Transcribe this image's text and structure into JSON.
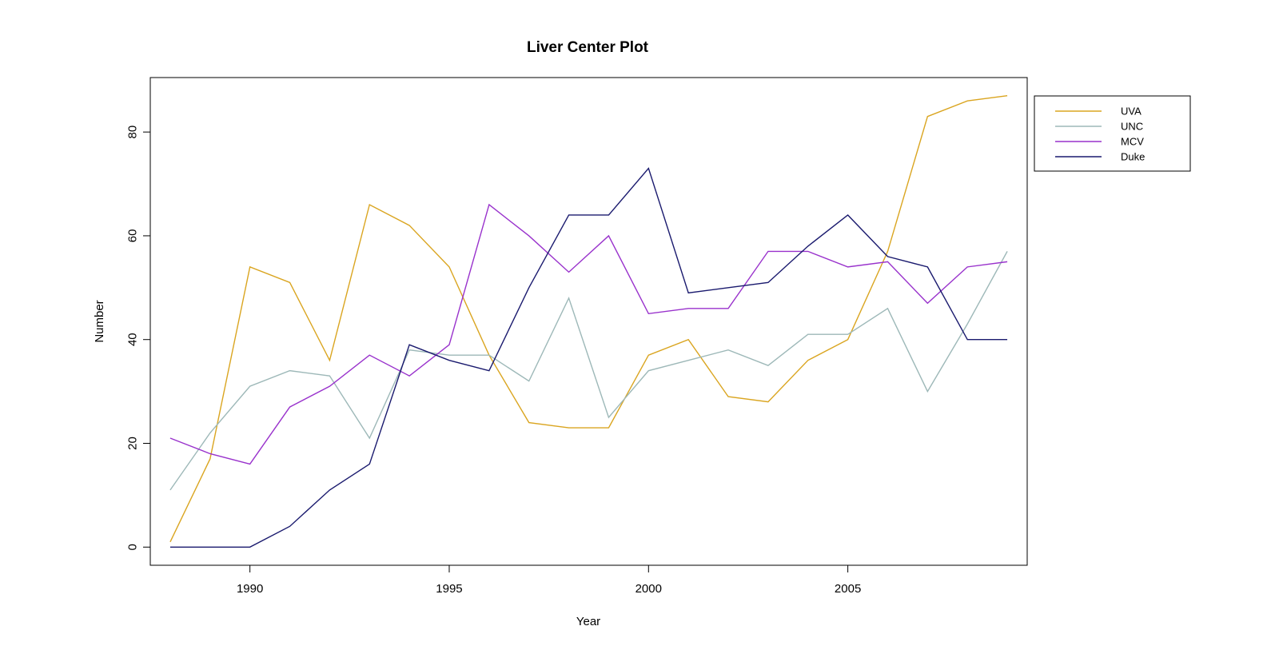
{
  "chart_data": {
    "type": "line",
    "title": "Liver Center Plot",
    "xlabel": "Year",
    "ylabel": "Number",
    "xlim": [
      1987.5,
      2009.5
    ],
    "ylim": [
      -3.5,
      90.5
    ],
    "xticks": [
      1990,
      1995,
      2000,
      2005
    ],
    "yticks": [
      0,
      20,
      40,
      60,
      80
    ],
    "grid": false,
    "legend_position": "outside-right-top",
    "x": [
      1988,
      1989,
      1990,
      1991,
      1992,
      1993,
      1994,
      1995,
      1996,
      1997,
      1998,
      1999,
      2000,
      2001,
      2002,
      2003,
      2004,
      2005,
      2006,
      2007,
      2008,
      2009
    ],
    "series": [
      {
        "name": "UVA",
        "color": "#DAA520",
        "values": [
          1,
          17,
          54,
          51,
          36,
          66,
          62,
          54,
          37,
          24,
          23,
          23,
          37,
          40,
          29,
          28,
          36,
          40,
          57,
          83,
          86,
          87
        ]
      },
      {
        "name": "UNC",
        "color": "#9DB8B8",
        "values": [
          11,
          22,
          31,
          34,
          33,
          21,
          38,
          37,
          37,
          32,
          48,
          25,
          34,
          36,
          38,
          35,
          41,
          41,
          46,
          30,
          43,
          57
        ]
      },
      {
        "name": "MCV",
        "color": "#9932CC",
        "values": [
          21,
          18,
          16,
          27,
          31,
          37,
          33,
          39,
          66,
          60,
          53,
          60,
          45,
          46,
          46,
          57,
          57,
          54,
          55,
          47,
          54,
          55
        ]
      },
      {
        "name": "Duke",
        "color": "#1A1A6E",
        "values": [
          0,
          0,
          0,
          4,
          11,
          16,
          39,
          36,
          34,
          50,
          64,
          64,
          73,
          49,
          50,
          51,
          58,
          64,
          56,
          54,
          40,
          40
        ]
      }
    ]
  }
}
